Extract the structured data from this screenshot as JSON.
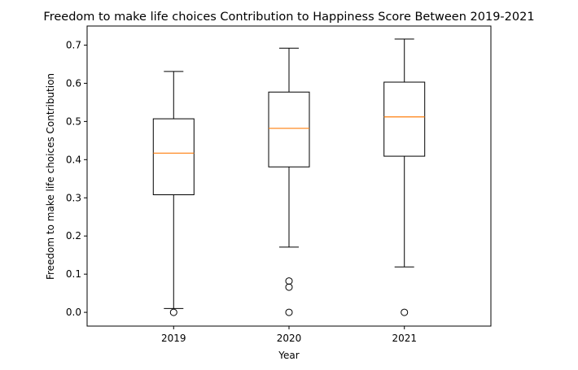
{
  "chart_data": {
    "type": "box",
    "title": "Freedom to make life choices Contribution to Happiness Score Between 2019-2021",
    "xlabel": "Year",
    "ylabel": "Freedom to make life choices Contribution",
    "categories": [
      "2019",
      "2020",
      "2021"
    ],
    "yticks": [
      "0.0",
      "0.1",
      "0.2",
      "0.3",
      "0.4",
      "0.5",
      "0.6",
      "0.7"
    ],
    "ylim": [
      -0.036,
      0.75
    ],
    "boxes": [
      {
        "name": "2019",
        "whisker_low": 0.01,
        "q1": 0.308,
        "median": 0.417,
        "q3": 0.507,
        "whisker_high": 0.631,
        "outliers": [
          0.0
        ]
      },
      {
        "name": "2020",
        "whisker_low": 0.171,
        "q1": 0.381,
        "median": 0.482,
        "q3": 0.577,
        "whisker_high": 0.692,
        "outliers": [
          0.082,
          0.066,
          0.0
        ]
      },
      {
        "name": "2021",
        "whisker_low": 0.119,
        "q1": 0.409,
        "median": 0.512,
        "q3": 0.603,
        "whisker_high": 0.716,
        "outliers": [
          0.0
        ]
      }
    ],
    "box_color": "#000000",
    "median_color": "#ff7f0e",
    "grid": false,
    "legend": "none"
  }
}
